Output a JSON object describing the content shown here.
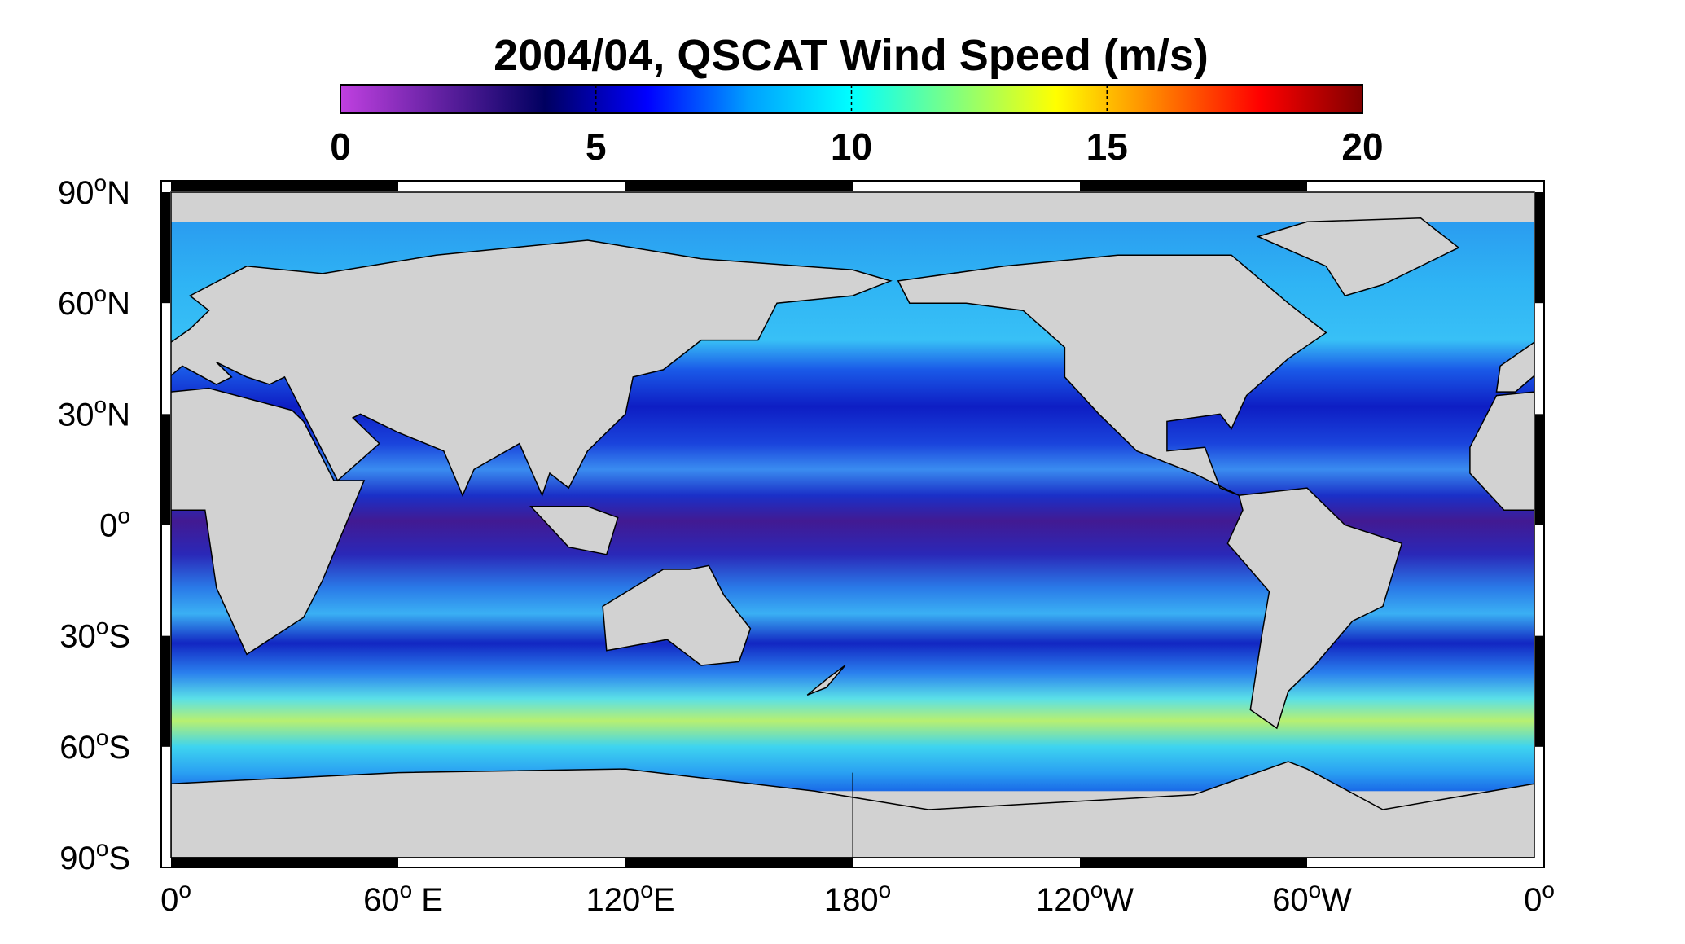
{
  "title": "2004/04,  QSCAT Wind Speed (m/s)",
  "colorbar": {
    "lim": [
      0,
      20
    ],
    "ticks": [
      0,
      5,
      10,
      15,
      20
    ],
    "colormap": [
      "#c040e0",
      "#6020a0",
      "#000060",
      "#0000ff",
      "#00a0ff",
      "#00ffff",
      "#80ff80",
      "#ffff00",
      "#ff8000",
      "#ff0000",
      "#800000"
    ]
  },
  "map": {
    "lat_labels": [
      [
        "90",
        "o",
        "N"
      ],
      [
        "60",
        "o",
        "N"
      ],
      [
        "30",
        "o",
        "N"
      ],
      [
        "0",
        "o"
      ],
      [
        "30",
        "o",
        "S"
      ],
      [
        "60",
        "o",
        "S"
      ],
      [
        "90",
        "o",
        "S"
      ]
    ],
    "lon_labels": [
      [
        "0",
        "o"
      ],
      [
        "60",
        "o",
        " E"
      ],
      [
        "120",
        "o",
        "E"
      ],
      [
        "180",
        "o"
      ],
      [
        "120",
        "o",
        "W"
      ],
      [
        "60",
        "o",
        "W"
      ],
      [
        "0",
        "o"
      ]
    ]
  }
}
